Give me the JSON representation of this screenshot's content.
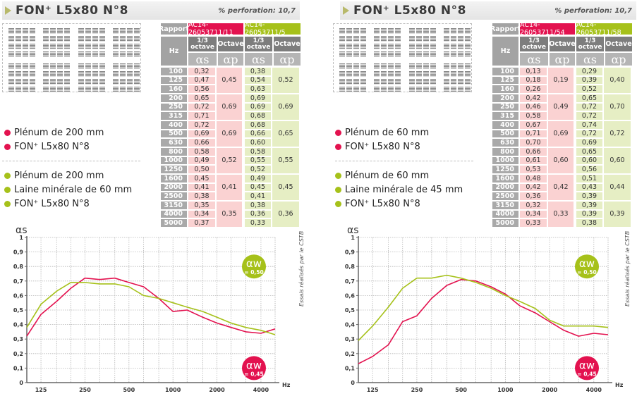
{
  "colors": {
    "red": "#e3124f",
    "green": "#a6c11a",
    "pink": "#fad2d2",
    "light_green": "#e6eec4",
    "grey": "#a3a3a3",
    "dark_grey": "#7d7d7d"
  },
  "panels": [
    {
      "header": {
        "title": "FON⁺ L5x80 N°8",
        "perforation": "% perforation: 10,7"
      },
      "legend_red": [
        "Plénum de 200 mm",
        "FON⁺ L5x80 N°8"
      ],
      "legend_green": [
        "Plénum de 200 mm",
        "Laine minérale de 60 mm",
        "FON⁺ L5x80 N°8"
      ],
      "table": {
        "rapport_label": "Rapport",
        "report_red": "AC14-26053711/11",
        "report_green": "AC14-26053711/5",
        "hz_label": "Hz",
        "third_octave_label": "1/3 octave",
        "octave_label": "Octave",
        "alpha_s": "αs",
        "alpha_p": "αp",
        "frequencies": [
          "100",
          "125",
          "160",
          "200",
          "250",
          "315",
          "400",
          "500",
          "630",
          "800",
          "1000",
          "1250",
          "1600",
          "2000",
          "2500",
          "3150",
          "4000",
          "5000"
        ],
        "red_as": [
          "0,32",
          "0,47",
          "0,56",
          "0,65",
          "0,72",
          "0,71",
          "0,72",
          "0,69",
          "0,66",
          "0,58",
          "0,49",
          "0,50",
          "0,45",
          "0,41",
          "0,38",
          "0,35",
          "0,34",
          "0,37"
        ],
        "red_ap": [
          "0,45",
          "0,69",
          "0,69",
          "0,52",
          "0,41",
          "0,35"
        ],
        "green_as": [
          "0,38",
          "0,54",
          "0,63",
          "0,69",
          "0,69",
          "0,68",
          "0,68",
          "0,66",
          "0,60",
          "0,58",
          "0,55",
          "0,52",
          "0,49",
          "0,45",
          "0,41",
          "0,38",
          "0,36",
          "0,33"
        ],
        "green_ap": [
          "0,52",
          "0,69",
          "0,65",
          "0,55",
          "0,45",
          "0,36"
        ]
      },
      "aw_green": {
        "symbol": "αw",
        "value": "= 0,50"
      },
      "aw_red": {
        "symbol": "αw",
        "value": "= 0,45"
      },
      "side_note": "Essais réalisés par le CSTB"
    },
    {
      "header": {
        "title": "FON⁺ L5x80 N°8",
        "perforation": "% perforation: 10,7"
      },
      "legend_red": [
        "Plénum de 60 mm",
        "FON⁺ L5x80 N°8"
      ],
      "legend_green": [
        "Plénum de 60 mm",
        "Laine minérale de 45 mm",
        "FON⁺ L5x80 N°8"
      ],
      "table": {
        "rapport_label": "Rapport",
        "report_red": "AC14-26053711/54",
        "report_green": "AC14-26053711/58",
        "hz_label": "Hz",
        "third_octave_label": "1/3 octave",
        "octave_label": "Octave",
        "alpha_s": "αs",
        "alpha_p": "αp",
        "frequencies": [
          "100",
          "125",
          "160",
          "200",
          "250",
          "315",
          "400",
          "500",
          "630",
          "800",
          "1000",
          "1250",
          "1600",
          "2000",
          "2500",
          "3150",
          "4000",
          "5000"
        ],
        "red_as": [
          "0,13",
          "0,18",
          "0,26",
          "0,42",
          "0,46",
          "0,58",
          "0,67",
          "0,71",
          "0,70",
          "0,66",
          "0,61",
          "0,53",
          "0,48",
          "0,42",
          "0,36",
          "0,32",
          "0,34",
          "0,33"
        ],
        "red_ap": [
          "0,19",
          "0,49",
          "0,69",
          "0,60",
          "0,42",
          "0,33"
        ],
        "green_as": [
          "0,29",
          "0,39",
          "0,52",
          "0,65",
          "0,72",
          "0,72",
          "0,74",
          "0,72",
          "0,69",
          "0,65",
          "0,60",
          "0,56",
          "0,51",
          "0,43",
          "0,39",
          "0,39",
          "0,39",
          "0,38"
        ],
        "green_ap": [
          "0,40",
          "0,70",
          "0,72",
          "0,60",
          "0,44",
          "0,39"
        ]
      },
      "aw_green": {
        "symbol": "αw",
        "value": "= 0,50"
      },
      "aw_red": {
        "symbol": "αw",
        "value": "= 0,45"
      },
      "side_note": "Essais réalisés par le CSTB"
    }
  ],
  "chart_data": [
    {
      "type": "line",
      "title": "",
      "ylabel": "αs",
      "xlabel": "Hz",
      "x": [
        100,
        125,
        160,
        200,
        250,
        315,
        400,
        500,
        630,
        800,
        1000,
        1250,
        1600,
        2000,
        2500,
        3150,
        4000,
        5000
      ],
      "xticks": [
        "125",
        "250",
        "500",
        "1000",
        "2000",
        "4000"
      ],
      "yticks": [
        "0",
        "0,1",
        "0,2",
        "0,3",
        "0,4",
        "0,5",
        "0,6",
        "0,7",
        "0,8",
        "0,9",
        "1"
      ],
      "ylim": [
        0,
        1
      ],
      "xscale": "log",
      "grid": true,
      "series": [
        {
          "name": "Plénum de 200 mm / FON+ L5x80 N°8",
          "color": "#e3124f",
          "values": [
            0.32,
            0.47,
            0.56,
            0.65,
            0.72,
            0.71,
            0.72,
            0.69,
            0.66,
            0.58,
            0.49,
            0.5,
            0.45,
            0.41,
            0.38,
            0.35,
            0.34,
            0.37
          ]
        },
        {
          "name": "Plénum de 200 mm / Laine minérale de 60 mm / FON+ L5x80 N°8",
          "color": "#a6c11a",
          "values": [
            0.38,
            0.54,
            0.63,
            0.69,
            0.69,
            0.68,
            0.68,
            0.66,
            0.6,
            0.58,
            0.55,
            0.52,
            0.49,
            0.45,
            0.41,
            0.38,
            0.36,
            0.33
          ]
        }
      ]
    },
    {
      "type": "line",
      "title": "",
      "ylabel": "αs",
      "xlabel": "Hz",
      "x": [
        100,
        125,
        160,
        200,
        250,
        315,
        400,
        500,
        630,
        800,
        1000,
        1250,
        1600,
        2000,
        2500,
        3150,
        4000,
        5000
      ],
      "xticks": [
        "125",
        "250",
        "500",
        "1000",
        "2000",
        "4000"
      ],
      "yticks": [
        "0",
        "0,1",
        "0,2",
        "0,3",
        "0,4",
        "0,5",
        "0,6",
        "0,7",
        "0,8",
        "0,9",
        "1"
      ],
      "ylim": [
        0,
        1
      ],
      "xscale": "log",
      "grid": true,
      "series": [
        {
          "name": "Plénum de 60 mm / FON+ L5x80 N°8",
          "color": "#e3124f",
          "values": [
            0.13,
            0.18,
            0.26,
            0.42,
            0.46,
            0.58,
            0.67,
            0.71,
            0.7,
            0.66,
            0.61,
            0.53,
            0.48,
            0.42,
            0.36,
            0.32,
            0.34,
            0.33
          ]
        },
        {
          "name": "Plénum de 60 mm / Laine minérale de 45 mm / FON+ L5x80 N°8",
          "color": "#a6c11a",
          "values": [
            0.29,
            0.39,
            0.52,
            0.65,
            0.72,
            0.72,
            0.74,
            0.72,
            0.69,
            0.65,
            0.6,
            0.56,
            0.51,
            0.43,
            0.39,
            0.39,
            0.39,
            0.38
          ]
        }
      ]
    }
  ]
}
